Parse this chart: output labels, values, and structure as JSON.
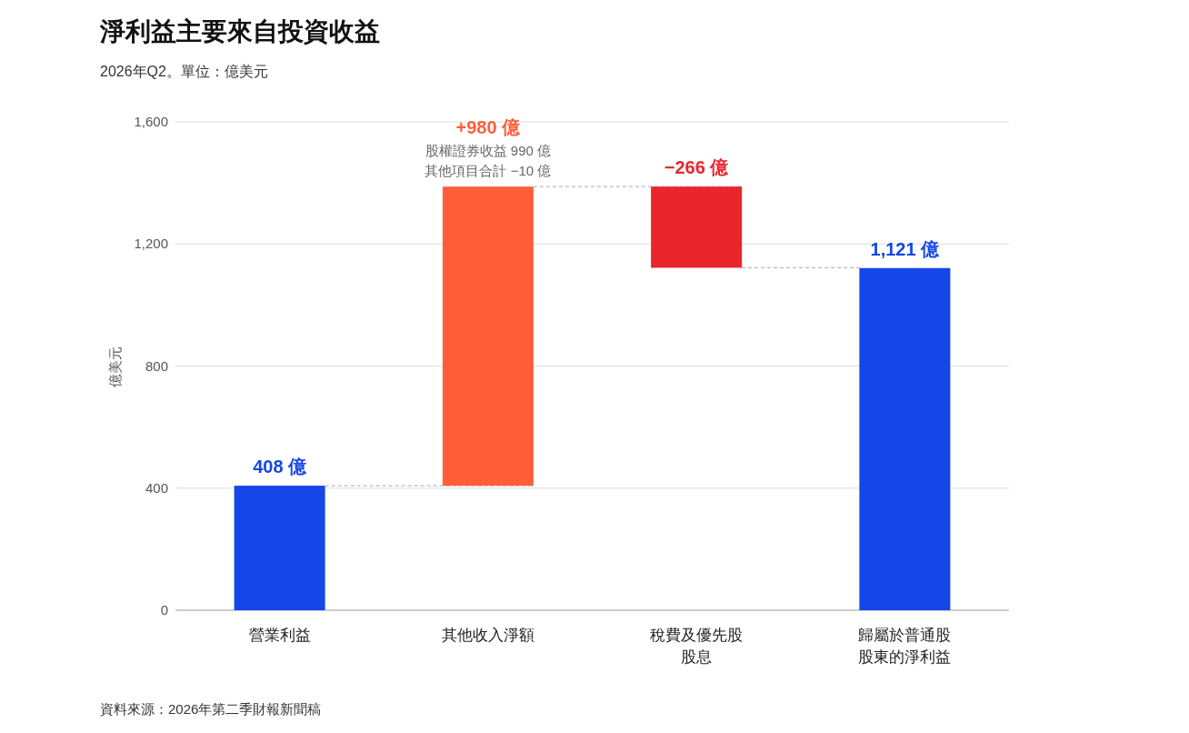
{
  "chart_data": {
    "type": "bar",
    "title": "淨利益主要來自投資收益",
    "subtitle": "2026年Q2。單位：億美元",
    "ylabel": "億美元",
    "categories": [
      "營業利益",
      "其他收入淨額",
      "稅費及優先股股息",
      "歸屬於普通股股東的淨利益"
    ],
    "values": [
      408,
      980,
      -266,
      1121
    ],
    "base": [
      0,
      408,
      1388,
      0
    ],
    "colors": [
      "#1446e8",
      "#ff5e3a",
      "#e8262b",
      "#1446e8"
    ],
    "value_labels": [
      "408 億",
      "+980 億",
      "−266 億",
      "1,121 億"
    ],
    "ylim": [
      0,
      1600
    ],
    "yticks": [
      0,
      {
        "value": 400,
        "label": "400"
      },
      {
        "value": 800,
        "label": "800"
      },
      {
        "value": 1200,
        "label": "1,200"
      },
      {
        "value": 1600,
        "label": "1,600"
      }
    ],
    "grid": "y",
    "annotations": [
      {
        "text": "股權證券收益 990 億",
        "x": "其他收入淨額",
        "y": 1388
      },
      {
        "text": "其他項目合計 −10 億",
        "x": "其他收入淨額",
        "y": 1388
      },
      "資料來源：2026年第二季財報新聞稿"
    ]
  }
}
